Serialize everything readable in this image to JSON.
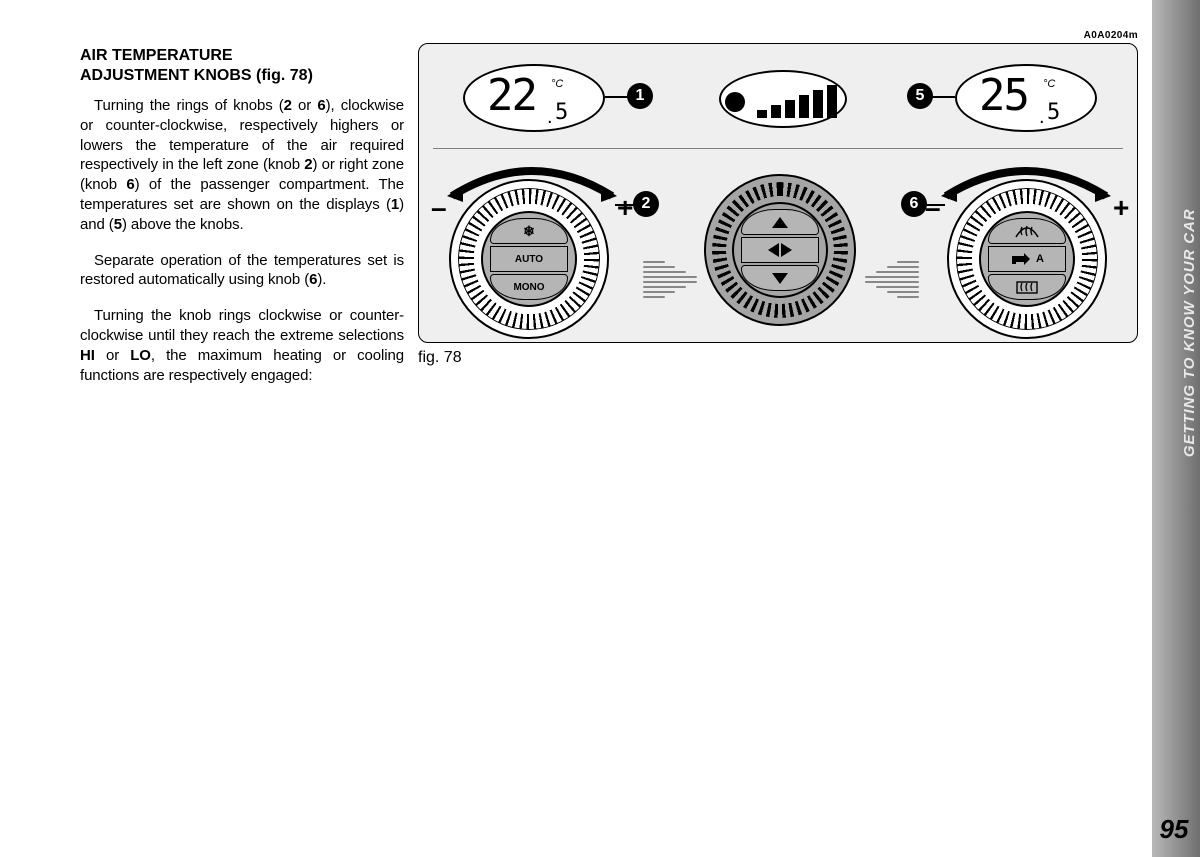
{
  "page": {
    "sidebar_title": "GETTING TO KNOW YOUR CAR",
    "page_number": "95"
  },
  "text": {
    "heading_l1": "AIR TEMPERATURE",
    "heading_l2": "ADJUSTMENT KNOBS (fig. 78)",
    "p1": "Turning the rings of knobs (<b>2</b> or <b>6</b>), clockwise or counter-clockwise, respectively highers or lowers the temperature of the air required respectively in the left zone (knob <b>2</b>) or right zone (knob <b>6</b>) of the passenger compartment. The temperatures set are shown on the displays (<b>1</b>) and (<b>5</b>) above the knobs.",
    "p2": "Separate operation of the temperatures set is restored automatically using knob (<b>6</b>).",
    "p3": "Turning the knob rings clockwise or counter-clockwise until they reach the extreme selections <b>HI</b> or <b>LO</b>, the maximum heating or cooling functions are respectively engaged:"
  },
  "figure": {
    "code": "A0A0204m",
    "caption": "fig. 78",
    "left_display": {
      "whole": "22",
      "decimal": "5",
      "unit": "°C"
    },
    "right_display": {
      "whole": "25",
      "decimal": "5",
      "unit": "°C"
    },
    "fan_level": 6,
    "callouts": {
      "c1": "1",
      "c2": "2",
      "c5": "5",
      "c6": "6"
    },
    "left_knob": {
      "top_label": "❄",
      "mid_label": "AUTO",
      "bot_label": "MONO"
    },
    "right_knob": {
      "top_icon": "defrost-front",
      "mid_icon": "recirculation",
      "mid_text": "A",
      "bot_icon": "defrost-rear"
    },
    "signs": {
      "minus": "–",
      "plus": "+"
    },
    "colors": {
      "panel_bg": "#efefef",
      "stroke": "#000000",
      "knob_bg": "#b0b0b0"
    }
  }
}
